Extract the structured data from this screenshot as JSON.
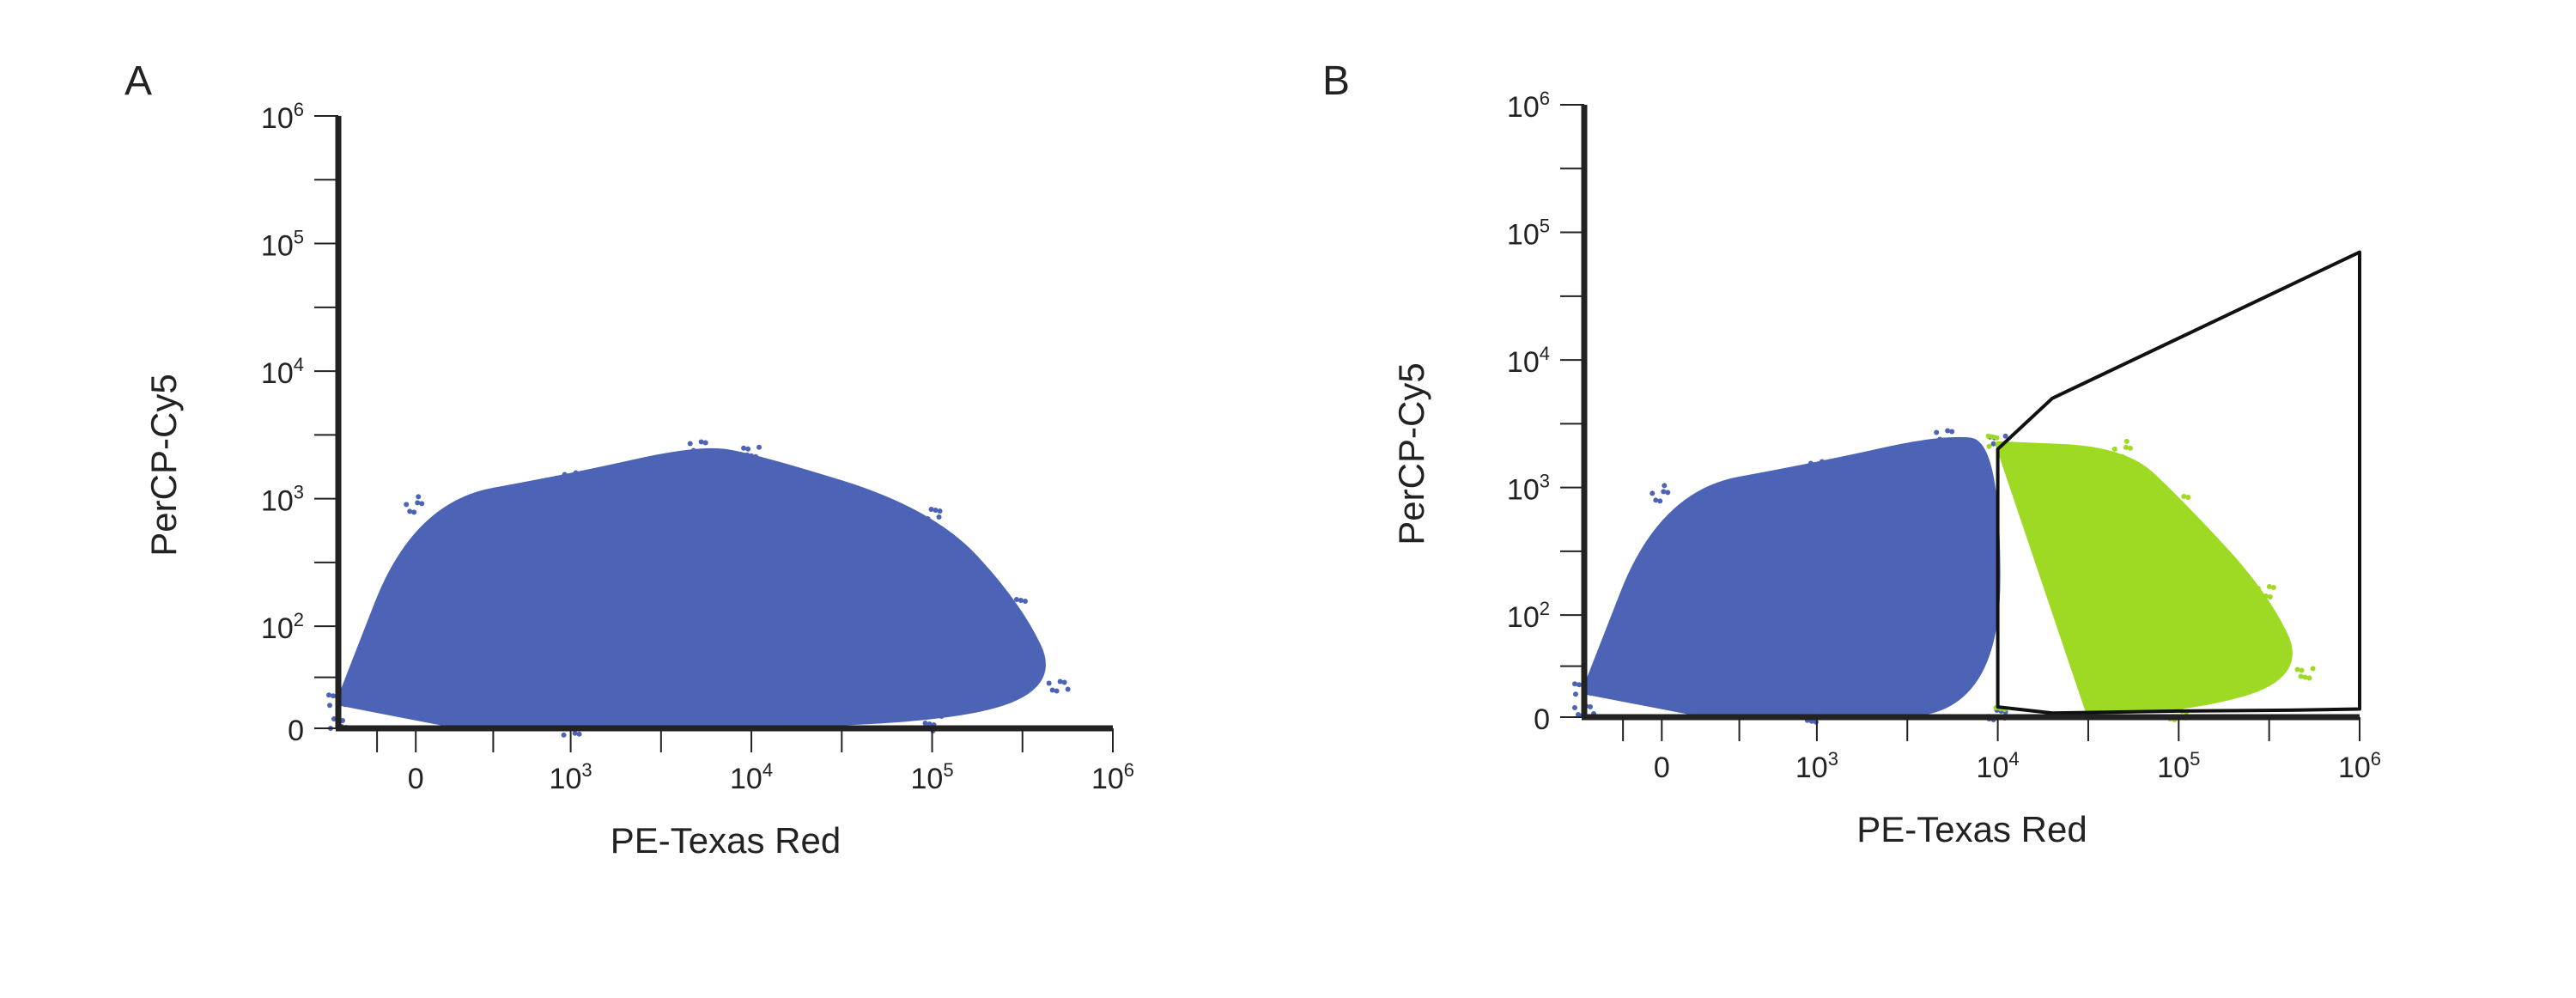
{
  "figure": {
    "panels": [
      {
        "label": "A"
      },
      {
        "label": "B"
      }
    ]
  },
  "colors": {
    "population": "#4c63b6",
    "gated_population": "#9ed924",
    "axis": "#222222",
    "gate_outline": "#111111"
  },
  "chart_data": [
    {
      "type": "scatter",
      "panel": "A",
      "title": "",
      "xlabel": "PE-Texas Red",
      "ylabel": "PerCP-Cy5",
      "x_scale": "biexponential",
      "y_scale": "biexponential",
      "xlim": [
        -1000,
        1000000
      ],
      "ylim": [
        0,
        1000000
      ],
      "x_tick_labels": [
        {
          "base": "0",
          "exp": "",
          "value": 0
        },
        {
          "base": "10",
          "exp": "3",
          "value": 1000
        },
        {
          "base": "10",
          "exp": "4",
          "value": 10000
        },
        {
          "base": "10",
          "exp": "5",
          "value": 100000
        },
        {
          "base": "10",
          "exp": "6",
          "value": 1000000
        }
      ],
      "y_tick_labels": [
        {
          "base": "0",
          "exp": "",
          "value": 0
        },
        {
          "base": "10",
          "exp": "2",
          "value": 100
        },
        {
          "base": "10",
          "exp": "3",
          "value": 1000
        },
        {
          "base": "10",
          "exp": "4",
          "value": 10000
        },
        {
          "base": "10",
          "exp": "5",
          "value": 100000
        },
        {
          "base": "10",
          "exp": "6",
          "value": 1000000
        }
      ],
      "series": [
        {
          "color": "#4c63b6",
          "points": [
            [
              -1000,
              25
            ],
            [
              0,
              900
            ],
            [
              1000,
              1500
            ],
            [
              5000,
              2500
            ],
            [
              10000,
              2200
            ],
            [
              100000,
              800
            ],
            [
              300000,
              150
            ],
            [
              500000,
              40
            ],
            [
              100000,
              5
            ],
            [
              1000,
              1
            ],
            [
              -1000,
              5
            ]
          ]
        }
      ],
      "grid": false
    },
    {
      "type": "scatter",
      "panel": "B",
      "title": "",
      "xlabel": "PE-Texas Red",
      "ylabel": "PerCP-Cy5",
      "x_scale": "biexponential",
      "y_scale": "biexponential",
      "xlim": [
        -1000,
        1000000
      ],
      "ylim": [
        0,
        1000000
      ],
      "x_tick_labels": [
        {
          "base": "0",
          "exp": "",
          "value": 0
        },
        {
          "base": "10",
          "exp": "3",
          "value": 1000
        },
        {
          "base": "10",
          "exp": "4",
          "value": 10000
        },
        {
          "base": "10",
          "exp": "5",
          "value": 100000
        },
        {
          "base": "10",
          "exp": "6",
          "value": 1000000
        }
      ],
      "y_tick_labels": [
        {
          "base": "0",
          "exp": "",
          "value": 0
        },
        {
          "base": "10",
          "exp": "2",
          "value": 100
        },
        {
          "base": "10",
          "exp": "3",
          "value": 1000
        },
        {
          "base": "10",
          "exp": "4",
          "value": 10000
        },
        {
          "base": "10",
          "exp": "5",
          "value": 100000
        },
        {
          "base": "10",
          "exp": "6",
          "value": 1000000
        }
      ],
      "series": [
        {
          "color": "#4c63b6",
          "points": [
            [
              -1000,
              25
            ],
            [
              0,
              900
            ],
            [
              1000,
              1500
            ],
            [
              5000,
              2500
            ],
            [
              10000,
              2200
            ],
            [
              10000,
              5
            ],
            [
              1000,
              1
            ],
            [
              -1000,
              5
            ]
          ]
        },
        {
          "color": "#9ed924",
          "points": [
            [
              10000,
              2200
            ],
            [
              50000,
              2000
            ],
            [
              100000,
              800
            ],
            [
              300000,
              150
            ],
            [
              500000,
              40
            ],
            [
              100000,
              5
            ],
            [
              10000,
              5
            ]
          ]
        }
      ],
      "gate": {
        "color": "#111111",
        "vertices": [
          [
            10000,
            2000
          ],
          [
            20000,
            5000
          ],
          [
            1000000,
            70000
          ],
          [
            1000000,
            8
          ],
          [
            500000,
            7
          ],
          [
            100000,
            6
          ],
          [
            20000,
            4
          ],
          [
            10000,
            10
          ],
          [
            10000,
            500
          ]
        ]
      },
      "grid": false
    }
  ]
}
